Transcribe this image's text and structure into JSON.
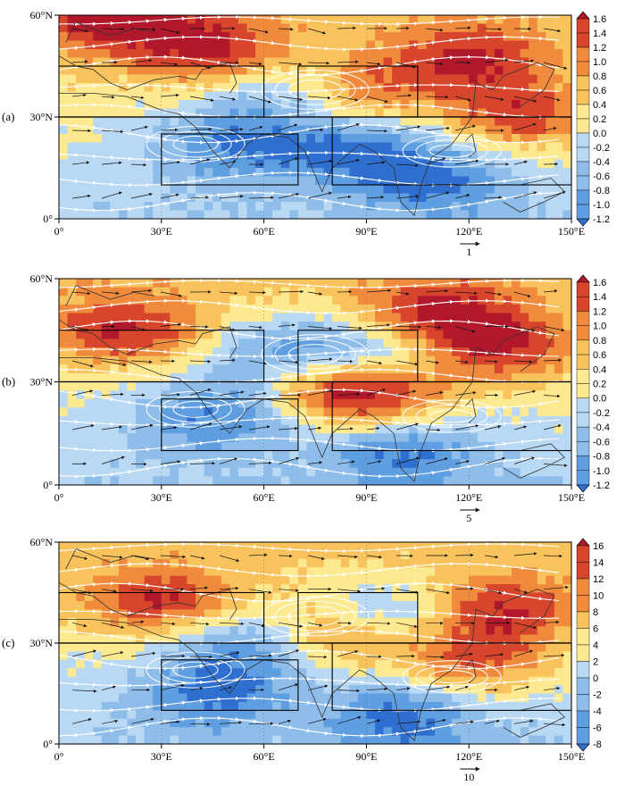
{
  "figure": {
    "lon_ticks": [
      "0°",
      "30°E",
      "60°E",
      "90°E",
      "120°E",
      "150°E"
    ],
    "lat_ticks": [
      "0°",
      "30°N",
      "60°N"
    ],
    "panels": [
      {
        "label": "(a)",
        "colorbar_labels": [
          "1.6",
          "1.4",
          "1.2",
          "1.0",
          "0.8",
          "0.6",
          "0.4",
          "0.2",
          "0.0",
          "-0.2",
          "-0.4",
          "-0.6",
          "-0.8",
          "-1.0",
          "-1.2"
        ],
        "reference_vector": "1",
        "warm_centers": [
          [
            45,
            50
          ],
          [
            15,
            58
          ],
          [
            120,
            47
          ],
          [
            85,
            38
          ],
          [
            135,
            30
          ]
        ],
        "cool_centers": [
          [
            70,
            38
          ],
          [
            50,
            22
          ],
          [
            85,
            20
          ],
          [
            110,
            12
          ]
        ]
      },
      {
        "label": "(b)",
        "colorbar_labels": [
          "1.6",
          "1.4",
          "1.2",
          "1.0",
          "0.8",
          "0.6",
          "0.4",
          "0.2",
          "0.0",
          "-0.2",
          "-0.4",
          "-0.6",
          "-0.8",
          "-1.0",
          "-1.2"
        ],
        "reference_vector": "5",
        "warm_centers": [
          [
            20,
            45
          ],
          [
            130,
            40
          ],
          [
            95,
            25
          ],
          [
            80,
            30
          ],
          [
            110,
            50
          ]
        ],
        "cool_centers": [
          [
            65,
            38
          ],
          [
            45,
            20
          ],
          [
            90,
            38
          ],
          [
            100,
            10
          ]
        ]
      },
      {
        "label": "(c)",
        "colorbar_labels": [
          "16",
          "14",
          "12",
          "10",
          "8",
          "6",
          "4",
          "2",
          "0",
          "-2",
          "-4",
          "-6",
          "-8"
        ],
        "reference_vector": "10",
        "warm_centers": [
          [
            30,
            42
          ],
          [
            82,
            33
          ],
          [
            130,
            40
          ],
          [
            120,
            25
          ]
        ],
        "cool_centers": [
          [
            55,
            30
          ],
          [
            95,
            38
          ],
          [
            45,
            15
          ],
          [
            100,
            8
          ]
        ]
      }
    ],
    "boxes_deg": [
      {
        "lon": [
          0,
          60
        ],
        "lat": [
          30,
          45
        ]
      },
      {
        "lon": [
          70,
          105
        ],
        "lat": [
          30,
          45
        ]
      },
      {
        "lon": [
          30,
          70
        ],
        "lat": [
          10,
          25
        ]
      },
      {
        "lon": [
          80,
          150
        ],
        "lat": [
          10,
          30
        ]
      }
    ],
    "colors": {
      "dark_red": "#b2182b",
      "red": "#d6452c",
      "orange": "#f08a3c",
      "light_orange": "#f8c25c",
      "yellow": "#fde98f",
      "pale_blue": "#b9d8f4",
      "light_blue": "#8fbde9",
      "blue": "#5f9ee0",
      "dark_blue": "#2f6fd0",
      "streamline": "#ffffff",
      "coast": "#333333"
    }
  }
}
